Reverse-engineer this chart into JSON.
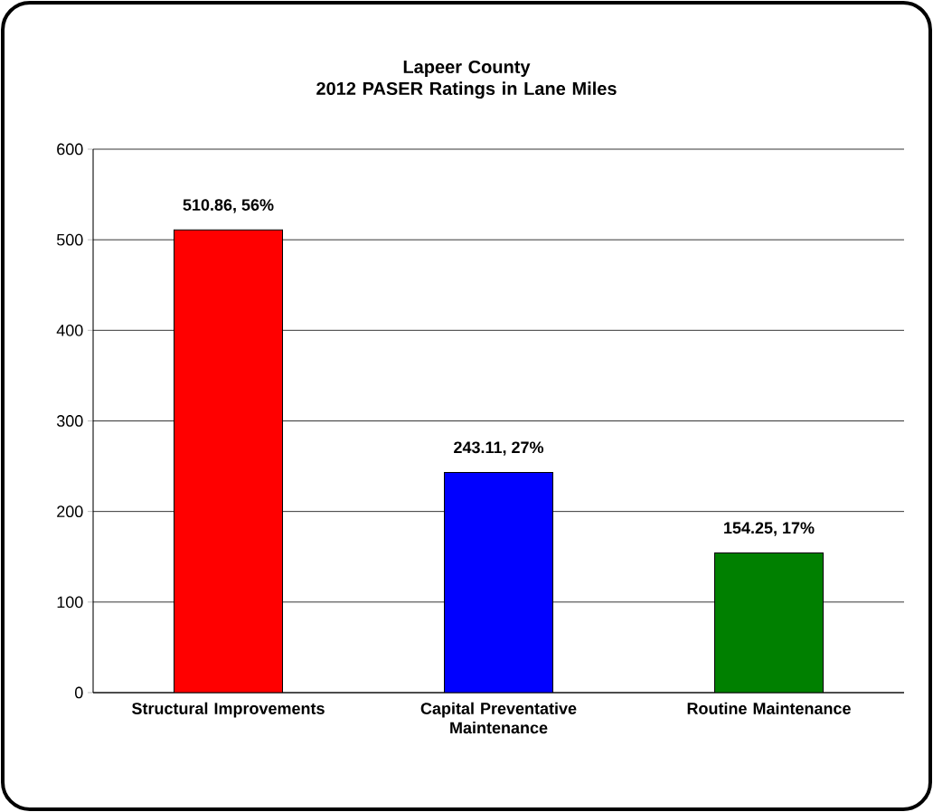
{
  "chart_data": {
    "type": "bar",
    "title": "Lapeer County\n2012 PASER Ratings in Lane Miles",
    "categories": [
      "Structural Improvements",
      "Capital Preventative Maintenance",
      "Routine Maintenance"
    ],
    "values": [
      510.86,
      243.11,
      154.25
    ],
    "colors": [
      "#ff0000",
      "#0000ff",
      "#008000"
    ],
    "value_labels": [
      "510.86, 56%",
      "243.11, 27%",
      "154.25, 17%"
    ],
    "ylim": [
      0,
      600
    ],
    "yticks": [
      0,
      100,
      200,
      300,
      400,
      500,
      600
    ],
    "grid": "y"
  }
}
